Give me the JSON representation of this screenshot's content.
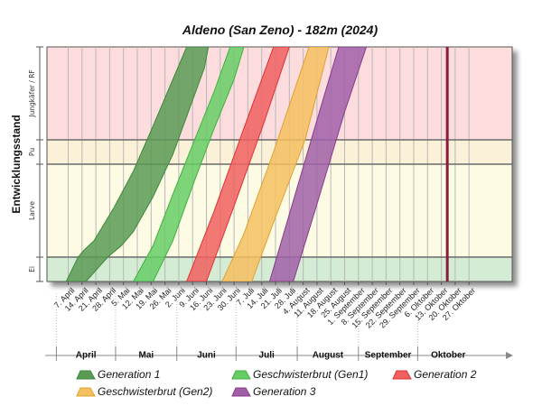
{
  "chart_data": {
    "type": "area",
    "title": "Aldeno (San Zeno) - 182m (2024)",
    "ylabel": "Entwicklungsstand",
    "stages": [
      "Ei",
      "Larve",
      "Pu",
      "Jungkäfer / RF"
    ],
    "stage_colors": [
      "#d3ecd3",
      "#fdfbe4",
      "#fbf0d8",
      "#fcdcdc"
    ],
    "x_tick_labels": [
      "7. April",
      "14. April",
      "21. April",
      "28. April",
      "5. Mai",
      "12. Mai",
      "19. Mai",
      "26. Mai",
      "2. Juni",
      "9. Juni",
      "16. Juni",
      "23. Juni",
      "30. Juni",
      "7. Juli",
      "14. Juli",
      "21. Juli",
      "28. Juli",
      "4. August",
      "11. August",
      "18. August",
      "25. August",
      "1. September",
      "8. September",
      "15. September",
      "22. September",
      "29. September",
      "6. Oktober",
      "13. Oktober",
      "20. Oktober",
      "27. Oktober"
    ],
    "months": [
      "April",
      "Mai",
      "Juni",
      "Juli",
      "August",
      "September",
      "Oktober"
    ],
    "current_date": "16. Oktober",
    "series": [
      {
        "name": "Generation 1",
        "color": "#3a8a3a",
        "fill": "#5a9a55",
        "left": [
          [
            "2024-04-06",
            0
          ],
          [
            "2024-04-12",
            10
          ],
          [
            "2024-04-15",
            13
          ],
          [
            "2024-04-20",
            17
          ],
          [
            "2024-04-30",
            31
          ],
          [
            "2024-05-10",
            47
          ],
          [
            "2024-05-20",
            66
          ],
          [
            "2024-06-06",
            100
          ]
        ],
        "right": [
          [
            "2024-04-16",
            0
          ],
          [
            "2024-04-27",
            10
          ],
          [
            "2024-05-04",
            15
          ],
          [
            "2024-05-10",
            21
          ],
          [
            "2024-05-20",
            36
          ],
          [
            "2024-05-30",
            54
          ],
          [
            "2024-06-15",
            91
          ],
          [
            "2024-06-17",
            100
          ]
        ]
      },
      {
        "name": "Geschwisterbrut (Gen1)",
        "color": "#40b040",
        "fill": "#66cc66",
        "left": [
          [
            "2024-05-10",
            0
          ],
          [
            "2024-05-20",
            15
          ],
          [
            "2024-05-30",
            37
          ],
          [
            "2024-06-10",
            60
          ],
          [
            "2024-06-20",
            81
          ],
          [
            "2024-06-28",
            100
          ]
        ],
        "right": [
          [
            "2024-05-20",
            0
          ],
          [
            "2024-05-30",
            17
          ],
          [
            "2024-06-10",
            43
          ],
          [
            "2024-06-20",
            65
          ],
          [
            "2024-06-30",
            86
          ],
          [
            "2024-07-05",
            100
          ]
        ]
      },
      {
        "name": "Generation 2",
        "color": "#e03030",
        "fill": "#f06060",
        "left": [
          [
            "2024-06-06",
            0
          ],
          [
            "2024-06-20",
            30
          ],
          [
            "2024-07-05",
            65
          ],
          [
            "2024-07-20",
            100
          ]
        ],
        "right": [
          [
            "2024-06-16",
            0
          ],
          [
            "2024-06-30",
            32
          ],
          [
            "2024-07-15",
            67
          ],
          [
            "2024-07-28",
            100
          ]
        ]
      },
      {
        "name": "Geschwisterbrut (Gen2)",
        "color": "#e0a030",
        "fill": "#f5c060",
        "left": [
          [
            "2024-06-24",
            0
          ],
          [
            "2024-07-05",
            20
          ],
          [
            "2024-07-20",
            55
          ],
          [
            "2024-08-07",
            100
          ]
        ],
        "right": [
          [
            "2024-07-09",
            0
          ],
          [
            "2024-07-20",
            25
          ],
          [
            "2024-08-05",
            60
          ],
          [
            "2024-08-17",
            100
          ]
        ]
      },
      {
        "name": "Generation 3",
        "color": "#8a3a8a",
        "fill": "#a060a8",
        "left": [
          [
            "2024-07-18",
            0
          ],
          [
            "2024-08-01",
            40
          ],
          [
            "2024-08-15",
            80
          ],
          [
            "2024-08-22",
            100
          ]
        ],
        "right": [
          [
            "2024-07-30",
            0
          ],
          [
            "2024-08-10",
            30
          ],
          [
            "2024-08-25",
            72
          ],
          [
            "2024-09-05",
            100
          ]
        ]
      }
    ]
  }
}
